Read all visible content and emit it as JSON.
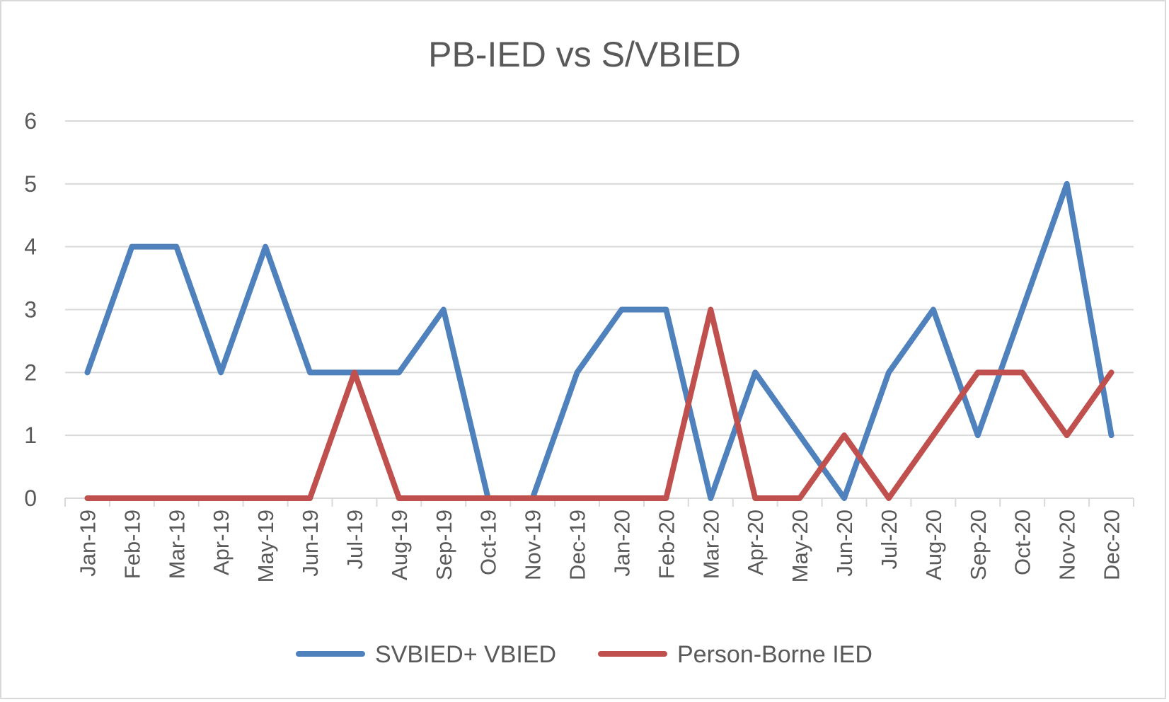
{
  "chart_data": {
    "type": "line",
    "title": "PB-IED vs S/VBIED",
    "xlabel": "",
    "ylabel": "",
    "ylim": [
      0,
      6
    ],
    "yticks": [
      "0",
      "1",
      "2",
      "3",
      "4",
      "5",
      "6"
    ],
    "grid": true,
    "legend": "bottom",
    "categories": [
      "Jan-19",
      "Feb-19",
      "Mar-19",
      "Apr-19",
      "May-19",
      "Jun-19",
      "Jul-19",
      "Aug-19",
      "Sep-19",
      "Oct-19",
      "Nov-19",
      "Dec-19",
      "Jan-20",
      "Feb-20",
      "Mar-20",
      "Apr-20",
      "May-20",
      "Jun-20",
      "Jul-20",
      "Aug-20",
      "Sep-20",
      "Oct-20",
      "Nov-20",
      "Dec-20"
    ],
    "series": [
      {
        "name": "SVBIED+ VBIED",
        "color": "#4f81bd",
        "values": [
          2,
          4,
          4,
          2,
          4,
          2,
          2,
          2,
          3,
          0,
          0,
          2,
          3,
          3,
          0,
          2,
          1,
          0,
          2,
          3,
          1,
          3,
          5,
          1
        ]
      },
      {
        "name": "Person-Borne IED",
        "color": "#c0504d",
        "values": [
          0,
          0,
          0,
          0,
          0,
          0,
          2,
          0,
          0,
          0,
          0,
          0,
          0,
          0,
          3,
          0,
          0,
          1,
          0,
          1,
          2,
          2,
          1,
          2
        ]
      }
    ]
  }
}
